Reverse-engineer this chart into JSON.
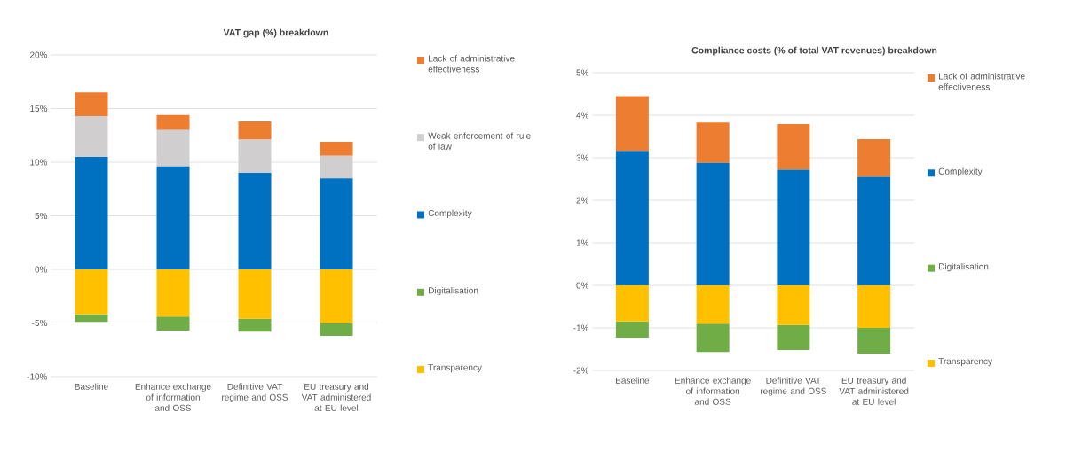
{
  "chart_data": [
    {
      "type": "bar",
      "title": "VAT gap (%) breakdown",
      "stacked": true,
      "grid": "y",
      "legend": "right",
      "categories": [
        "Baseline",
        "Enhance exchange of information and OSS",
        "Definitive VAT regime and OSS",
        "EU treasury and VAT administered at EU level"
      ],
      "ylim": [
        -10,
        20
      ],
      "yticks": [
        {
          "value": -10,
          "label": "-10%"
        },
        {
          "value": -5,
          "label": "-5%"
        },
        {
          "value": 0,
          "label": "0%"
        },
        {
          "value": 5,
          "label": "5%"
        },
        {
          "value": 10,
          "label": "10%"
        },
        {
          "value": 15,
          "label": "15%"
        },
        {
          "value": 20,
          "label": "20%"
        }
      ],
      "series": [
        {
          "name": "Transparency",
          "color": "#ffc000",
          "values": [
            -4.2,
            -4.4,
            -4.6,
            -5.0
          ]
        },
        {
          "name": "Digitalisation",
          "color": "#70ad47",
          "values": [
            -0.7,
            -1.3,
            -1.2,
            -1.2
          ]
        },
        {
          "name": "Complexity",
          "color": "#0070c0",
          "values": [
            10.5,
            9.6,
            9.0,
            8.5
          ]
        },
        {
          "name": "Weak enforcement of rule of law",
          "color": "#d0cece",
          "values": [
            3.8,
            3.4,
            3.1,
            2.1
          ]
        },
        {
          "name": "Lack of administrative effectiveness",
          "color": "#ed7d31",
          "values": [
            2.2,
            1.4,
            1.7,
            1.3
          ]
        }
      ]
    },
    {
      "type": "bar",
      "title": "Compliance costs (% of total VAT revenues) breakdown",
      "stacked": true,
      "grid": "y",
      "legend": "right",
      "categories": [
        "Baseline",
        "Enhance exchange of information and OSS",
        "Definitive VAT regime and OSS",
        "EU treasury and VAT administered at EU level"
      ],
      "ylim": [
        -2,
        5
      ],
      "yticks": [
        {
          "value": -2,
          "label": "-2%"
        },
        {
          "value": -1,
          "label": "-1%"
        },
        {
          "value": 0,
          "label": "0%"
        },
        {
          "value": 1,
          "label": "1%"
        },
        {
          "value": 2,
          "label": "2%"
        },
        {
          "value": 3,
          "label": "3%"
        },
        {
          "value": 4,
          "label": "4%"
        },
        {
          "value": 5,
          "label": "5%"
        }
      ],
      "series": [
        {
          "name": "Transparency",
          "color": "#ffc000",
          "values": [
            -0.85,
            -0.9,
            -0.93,
            -1.0
          ]
        },
        {
          "name": "Digitalisation",
          "color": "#70ad47",
          "values": [
            -0.38,
            -0.67,
            -0.59,
            -0.61
          ]
        },
        {
          "name": "Complexity",
          "color": "#0070c0",
          "values": [
            3.16,
            2.88,
            2.72,
            2.55
          ]
        },
        {
          "name": "Lack of administrative effectiveness",
          "color": "#ed7d31",
          "values": [
            1.29,
            0.95,
            1.07,
            0.89
          ]
        }
      ]
    }
  ]
}
